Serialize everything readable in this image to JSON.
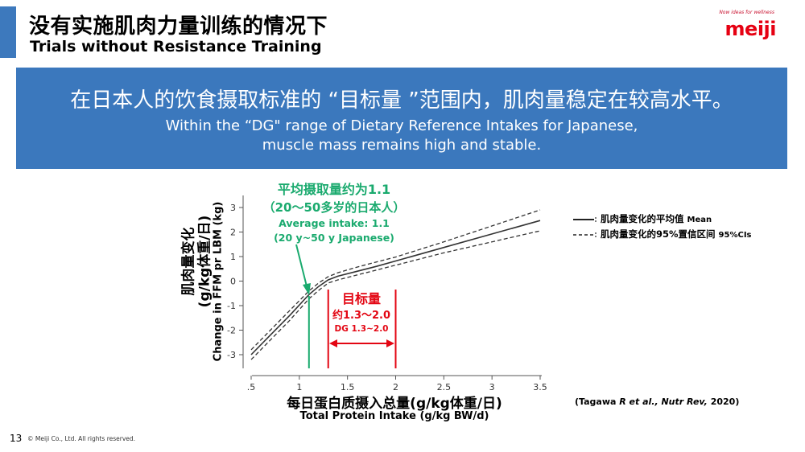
{
  "slide": {
    "title_zh": "没有实施肌肉力量训练的情况下",
    "title_en": "Trials without Resistance Training",
    "logo": {
      "tagline": "Now ideas for wellness",
      "wordmark": "meiji",
      "color": "#e60012"
    },
    "banner": {
      "text_zh": "在日本人的饮食摄取标准的 “目标量 ”范围内，肌肉量稳定在较高水平。",
      "text_en_line1": "Within the “DG\" range of Dietary Reference Intakes for Japanese,",
      "text_en_line2": "muscle mass remains high and stable.",
      "color": "#3b78bd"
    },
    "page_number": "13",
    "copyright": "© Meiji Co., Ltd. All rights reserved.",
    "citation": {
      "prefix": "(Tagawa ",
      "italic": "R et al., Nutr Rev,",
      "suffix": " 2020)"
    }
  },
  "chart_data": {
    "type": "line",
    "xlabel_zh": "每日蛋白质摄入总量(g/kg体重/日)",
    "xlabel_en": "Total Protein Intake (g/kg BW/d)",
    "ylabel_zh_line1": "肌肉量变化",
    "ylabel_zh_line2": "(g/kg体重/日)",
    "ylabel_en": "Change in FFM pr LBM (kg)",
    "xlim": [
      0.5,
      3.5
    ],
    "ylim": [
      -3.3,
      3.4
    ],
    "x_ticks": [
      0.5,
      1.0,
      1.5,
      2.0,
      2.5,
      3.0,
      3.5
    ],
    "x_tick_labels": [
      ".5",
      "1",
      "1.5",
      "2",
      "2.5",
      "3",
      "3.5"
    ],
    "y_ticks": [
      -3,
      -2,
      -1,
      0,
      1,
      2,
      3
    ],
    "y_tick_labels": [
      "-3",
      "-2",
      "-1",
      "0",
      "1",
      "2",
      "3"
    ],
    "series": [
      {
        "name": "肌肉量变化的平均值",
        "name_en": "Mean",
        "style": "solid",
        "x": [
          0.5,
          0.7,
          0.9,
          1.1,
          1.2,
          1.3,
          1.4,
          1.6,
          1.8,
          2.0,
          2.5,
          3.0,
          3.5
        ],
        "y": [
          -3.0,
          -2.2,
          -1.4,
          -0.55,
          -0.22,
          0.05,
          0.2,
          0.4,
          0.6,
          0.82,
          1.37,
          1.92,
          2.47
        ]
      },
      {
        "name": "肌肉量变化的95%置信区间",
        "name_en": "95%CIs",
        "style": "dashed",
        "x": [
          0.5,
          0.7,
          0.9,
          1.1,
          1.2,
          1.3,
          1.4,
          1.6,
          1.8,
          2.0,
          2.5,
          3.0,
          3.5
        ],
        "y": [
          -2.8,
          -2.0,
          -1.2,
          -0.4,
          -0.08,
          0.18,
          0.34,
          0.57,
          0.78,
          0.98,
          1.6,
          2.25,
          2.9
        ]
      },
      {
        "name": "肌肉量变化的95%置信区间",
        "name_en": "95%CIs",
        "style": "dashed",
        "x": [
          0.5,
          0.7,
          0.9,
          1.1,
          1.2,
          1.3,
          1.4,
          1.6,
          1.8,
          2.0,
          2.5,
          3.0,
          3.5
        ],
        "y": [
          -3.2,
          -2.4,
          -1.6,
          -0.72,
          -0.38,
          -0.08,
          0.05,
          0.25,
          0.45,
          0.65,
          1.15,
          1.6,
          2.05
        ]
      }
    ],
    "reference_lines": [
      {
        "x": 1.1,
        "color": "#1aaa6e",
        "label": "average intake"
      },
      {
        "x": 1.3,
        "color": "#e30613",
        "label": "DG lower"
      },
      {
        "x": 2.0,
        "color": "#e30613",
        "label": "DG upper"
      }
    ],
    "annotations": {
      "average": {
        "line1_zh": "平均摄取量约为1.1",
        "line2_zh": "（20～50多岁的日本人）",
        "line3_en": "Average intake: 1.1",
        "line4_en": "(20 y~50 y Japanese)",
        "color": "#1aaa6e"
      },
      "dg": {
        "line1_zh": "目标量",
        "line2_zh": "约1.3～2.0",
        "line3_en": "DG 1.3~2.0",
        "color": "#e30613"
      }
    },
    "legend_placement": "right",
    "legend": [
      {
        "style": "solid",
        "label_zh": "肌肉量变化的平均值",
        "label_en": "Mean"
      },
      {
        "style": "dashed",
        "label_zh": "肌肉量变化的95%置信区间",
        "label_en": "95%CIs"
      }
    ]
  }
}
